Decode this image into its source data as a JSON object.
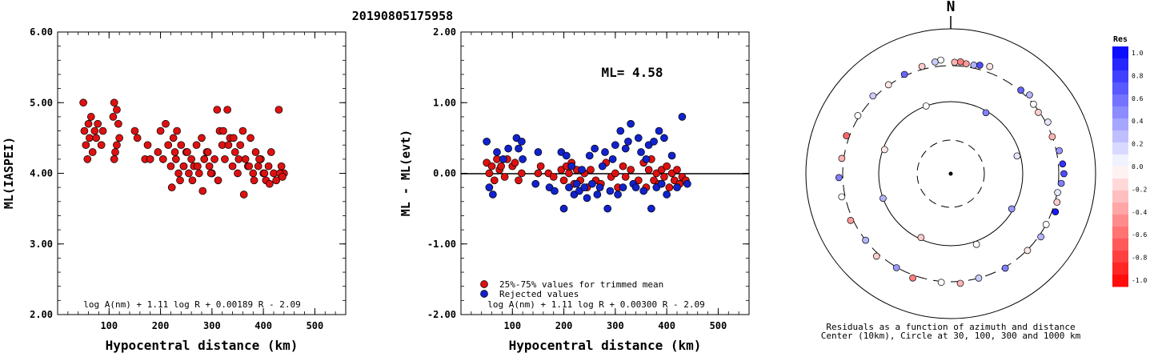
{
  "title": "20190805175958",
  "left_panel": {
    "ylabel": "ML(IASPEI)",
    "xlabel": "Hypocentral distance (km)",
    "formula": "log A(nm) + 1.11 log R + 0.00189 R - 2.09",
    "yticks": [
      "6.00",
      "5.00",
      "4.00",
      "3.00",
      "2.00"
    ],
    "xticks": [
      "100",
      "200",
      "300",
      "400",
      "500"
    ]
  },
  "middle_panel": {
    "ylabel": "ML - ML(evt)",
    "xlabel": "Hypocentral distance (km)",
    "ml_text": "ML= 4.58",
    "formula": "log A(nm) + 1.11 log R + 0.00300 R - 2.09",
    "legend_trimmed": "25%-75% values for trimmed mean",
    "legend_rejected": "Rejected values",
    "yticks": [
      "2.00",
      "1.00",
      "0.00",
      "-1.00",
      "-2.00"
    ],
    "xticks": [
      "100",
      "200",
      "300",
      "400",
      "500"
    ]
  },
  "polar_panel": {
    "north_label": "N",
    "caption1": "Residuals as a function of azimuth and distance",
    "caption2": "Center (10km), Circle at 30, 100, 300 and 1000 km",
    "colorbar_title": "Res",
    "colorbar_ticks": [
      "1.0",
      "0.8",
      "0.6",
      "0.4",
      "0.2",
      "0.0",
      "-0.2",
      "-0.4",
      "-0.6",
      "-0.8",
      "-1.0"
    ]
  },
  "colors": {
    "trimmed": "#dd1111",
    "rejected": "#1122cc",
    "positive_max": "#0000ff",
    "negative_max": "#ff0000"
  },
  "chart_data": [
    {
      "type": "scatter",
      "ylabel": "ML(IASPEI)",
      "xlabel": "Hypocentral distance (km)",
      "xlim": [
        0,
        560
      ],
      "ylim": [
        2.0,
        6.0
      ],
      "series": [
        {
          "x": [
            50,
            52,
            55,
            58,
            60,
            62,
            65,
            68,
            72,
            75,
            78,
            85,
            88,
            108,
            110,
            112,
            115,
            118,
            120,
            110,
            115,
            150,
            155,
            170,
            175,
            180,
            195,
            200,
            205,
            210,
            215,
            220,
            225,
            230,
            235,
            240,
            245,
            250,
            255,
            260,
            265,
            270,
            275,
            280,
            285,
            290,
            295,
            300,
            305,
            310,
            315,
            320,
            325,
            330,
            335,
            340,
            345,
            350,
            355,
            360,
            365,
            370,
            375,
            380,
            385,
            390,
            395,
            400,
            405,
            410,
            415,
            420,
            425,
            430,
            435,
            440,
            222,
            228,
            232,
            238,
            245,
            252,
            262,
            272,
            282,
            292,
            298,
            312,
            322,
            332,
            342,
            352,
            362,
            372,
            382,
            392,
            402,
            412,
            432,
            437
          ],
          "y": [
            5.0,
            4.6,
            4.4,
            4.2,
            4.7,
            4.5,
            4.8,
            4.3,
            4.6,
            4.5,
            4.7,
            4.4,
            4.6,
            4.8,
            5.0,
            4.3,
            4.9,
            4.7,
            4.5,
            4.2,
            4.4,
            4.6,
            4.5,
            4.2,
            4.4,
            4.2,
            4.3,
            4.6,
            4.2,
            4.7,
            4.4,
            4.1,
            4.5,
            4.2,
            4.0,
            4.4,
            4.1,
            4.3,
            4.0,
            4.2,
            4.1,
            4.4,
            4.0,
            4.5,
            4.2,
            4.3,
            4.1,
            4.0,
            4.2,
            4.9,
            4.6,
            4.4,
            4.2,
            4.9,
            4.5,
            4.1,
            4.3,
            4.0,
            4.4,
            4.6,
            4.2,
            4.1,
            4.5,
            4.0,
            4.3,
            4.1,
            4.2,
            4.0,
            3.9,
            4.1,
            4.3,
            4.0,
            3.9,
            4.9,
            4.1,
            4.0,
            3.8,
            4.3,
            4.6,
            3.9,
            4.1,
            4.3,
            3.9,
            4.1,
            3.75,
            4.3,
            4.0,
            3.9,
            4.6,
            4.4,
            4.5,
            4.2,
            3.7,
            4.1,
            3.9,
            4.2,
            4.0,
            3.85,
            4.0,
            3.95
          ]
        }
      ]
    },
    {
      "type": "scatter",
      "ylabel": "ML - ML(evt)",
      "xlabel": "Hypocentral distance (km)",
      "xlim": [
        0,
        560
      ],
      "ylim": [
        -2.0,
        2.0
      ],
      "series": [
        {
          "name": "25%-75% values for trimmed mean",
          "x": [
            50,
            55,
            60,
            65,
            70,
            75,
            78,
            85,
            90,
            100,
            105,
            112,
            118,
            150,
            155,
            170,
            180,
            195,
            200,
            205,
            210,
            215,
            220,
            225,
            232,
            240,
            245,
            252,
            262,
            272,
            282,
            292,
            300,
            305,
            315,
            320,
            330,
            345,
            355,
            360,
            365,
            370,
            375,
            380,
            385,
            390,
            395,
            400,
            405,
            410,
            415,
            420,
            425,
            430,
            437
          ],
          "y": [
            0.15,
            0.0,
            0.1,
            -0.1,
            0.2,
            0.05,
            0.1,
            -0.05,
            0.2,
            0.1,
            0.15,
            -0.1,
            0.0,
            0.0,
            0.1,
            0.0,
            -0.05,
            0.05,
            -0.1,
            0.1,
            0.0,
            0.15,
            -0.15,
            0.05,
            -0.1,
            0.0,
            -0.2,
            0.05,
            -0.1,
            -0.15,
            0.15,
            -0.05,
            0.0,
            -0.2,
            0.1,
            -0.05,
            0.05,
            -0.1,
            0.15,
            -0.2,
            0.05,
            0.2,
            -0.1,
            0.0,
            -0.15,
            0.05,
            -0.05,
            0.1,
            -0.2,
            0.0,
            -0.1,
            0.05,
            -0.15,
            -0.05,
            -0.1
          ]
        },
        {
          "name": "Rejected values",
          "x": [
            50,
            55,
            62,
            70,
            82,
            92,
            108,
            112,
            118,
            120,
            145,
            150,
            172,
            182,
            195,
            200,
            205,
            210,
            215,
            220,
            225,
            230,
            235,
            240,
            245,
            250,
            255,
            260,
            265,
            270,
            275,
            280,
            285,
            290,
            295,
            300,
            305,
            310,
            315,
            320,
            325,
            330,
            335,
            340,
            345,
            350,
            355,
            360,
            365,
            370,
            375,
            380,
            385,
            390,
            395,
            400,
            410,
            420,
            430,
            440
          ],
          "y": [
            0.45,
            -0.2,
            -0.3,
            0.3,
            0.2,
            0.35,
            0.5,
            0.35,
            0.45,
            0.2,
            -0.15,
            0.3,
            -0.2,
            -0.25,
            0.3,
            -0.5,
            0.25,
            -0.2,
            0.1,
            -0.3,
            -0.15,
            -0.25,
            0.05,
            -0.2,
            -0.35,
            0.25,
            -0.15,
            0.35,
            -0.3,
            -0.2,
            0.1,
            0.3,
            -0.5,
            -0.25,
            0.2,
            0.4,
            -0.3,
            0.6,
            -0.2,
            0.35,
            0.45,
            0.7,
            -0.15,
            -0.2,
            0.5,
            0.3,
            -0.25,
            0.2,
            0.4,
            -0.5,
            0.45,
            -0.2,
            0.6,
            -0.15,
            0.5,
            -0.3,
            0.25,
            -0.2,
            0.8,
            -0.15
          ]
        }
      ]
    },
    {
      "type": "scatter",
      "name": "polar residuals",
      "angle_unit": "degrees azimuth",
      "radius_unit": "km",
      "points": [
        {
          "az": 12,
          "dist": 330,
          "res": 0.3
        },
        {
          "az": 15,
          "dist": 345,
          "res": 0.7
        },
        {
          "az": 20,
          "dist": 365,
          "res": -0.1
        },
        {
          "az": 8,
          "dist": 330,
          "res": -0.4
        },
        {
          "az": 5,
          "dist": 345,
          "res": -0.5
        },
        {
          "az": -5,
          "dist": 365,
          "res": 0.0
        },
        {
          "az": -8,
          "dist": 350,
          "res": 0.2
        },
        {
          "az": 2,
          "dist": 335,
          "res": -0.3
        },
        {
          "az": 40,
          "dist": 310,
          "res": 0.6
        },
        {
          "az": 45,
          "dist": 335,
          "res": 0.3
        },
        {
          "az": 50,
          "dist": 300,
          "res": 0.0
        },
        {
          "az": 55,
          "dist": 290,
          "res": -0.2
        },
        {
          "az": 62,
          "dist": 320,
          "res": 0.1
        },
        {
          "az": 70,
          "dist": 300,
          "res": -0.3
        },
        {
          "az": 78,
          "dist": 330,
          "res": 0.4
        },
        {
          "az": 85,
          "dist": 345,
          "res": 0.8
        },
        {
          "az": 90,
          "dist": 355,
          "res": 0.7
        },
        {
          "az": 95,
          "dist": 330,
          "res": 0.5
        },
        {
          "az": 100,
          "dist": 305,
          "res": 0.1
        },
        {
          "az": 105,
          "dist": 320,
          "res": -0.2
        },
        {
          "az": 110,
          "dist": 335,
          "res": 0.9
        },
        {
          "az": 118,
          "dist": 300,
          "res": 0.0
        },
        {
          "az": 125,
          "dist": 320,
          "res": 0.3
        },
        {
          "az": 135,
          "dist": 305,
          "res": -0.1
        },
        {
          "az": 150,
          "dist": 310,
          "res": 0.5
        },
        {
          "az": 165,
          "dist": 300,
          "res": 0.2
        },
        {
          "az": 175,
          "dist": 320,
          "res": -0.3
        },
        {
          "az": 185,
          "dist": 310,
          "res": 0.0
        },
        {
          "az": 200,
          "dist": 330,
          "res": -0.5
        },
        {
          "az": 210,
          "dist": 305,
          "res": 0.4
        },
        {
          "az": 222,
          "dist": 330,
          "res": -0.2
        },
        {
          "az": 232,
          "dist": 300,
          "res": 0.3
        },
        {
          "az": 245,
          "dist": 325,
          "res": -0.4
        },
        {
          "az": 258,
          "dist": 335,
          "res": 0.0
        },
        {
          "az": 268,
          "dist": 340,
          "res": 0.5
        },
        {
          "az": 278,
          "dist": 320,
          "res": -0.3
        },
        {
          "az": 290,
          "dist": 330,
          "res": -0.6
        },
        {
          "az": 302,
          "dist": 315,
          "res": 0.0
        },
        {
          "az": 315,
          "dist": 320,
          "res": 0.2
        },
        {
          "az": 325,
          "dist": 305,
          "res": -0.1
        },
        {
          "az": 335,
          "dist": 315,
          "res": 0.6
        },
        {
          "az": 345,
          "dist": 330,
          "res": -0.2
        },
        {
          "az": 30,
          "dist": 95,
          "res": 0.5
        },
        {
          "az": 75,
          "dist": 90,
          "res": 0.1
        },
        {
          "az": 120,
          "dist": 95,
          "res": 0.4
        },
        {
          "az": 160,
          "dist": 110,
          "res": 0.0
        },
        {
          "az": 205,
          "dist": 95,
          "res": -0.2
        },
        {
          "az": 250,
          "dist": 100,
          "res": 0.3
        },
        {
          "az": 290,
          "dist": 95,
          "res": -0.1
        },
        {
          "az": 340,
          "dist": 100,
          "res": 0.0
        }
      ]
    }
  ]
}
